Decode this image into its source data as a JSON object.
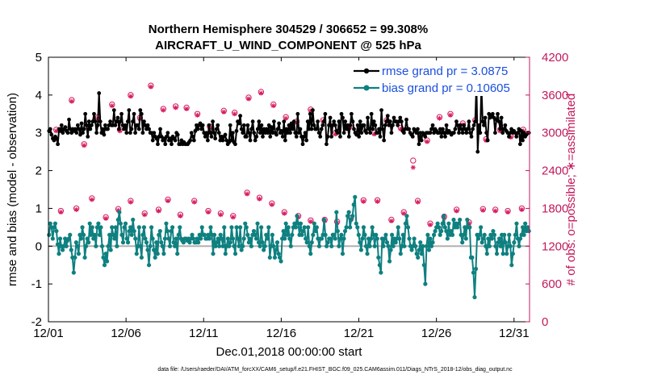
{
  "chart_data": {
    "type": "line",
    "title": "Northern Hemisphere 304529 / 306652 = 99.308%",
    "subtitle": "AIRCRAFT_U_WIND_COMPONENT @ 525 hPa",
    "xlabel": "Dec.01,2018 00:00:00 start",
    "ylabel": "rmse and bias (model - observation)",
    "y2label": "# of obs: o=possible; ∗=assimilated",
    "xlim": [
      0,
      31
    ],
    "ylim": [
      -2,
      5
    ],
    "y2lim": [
      0,
      4200
    ],
    "x_tick_labels": [
      "12/01",
      "12/06",
      "12/11",
      "12/16",
      "12/21",
      "12/26",
      "12/31"
    ],
    "x_tick_values": [
      0,
      5,
      10,
      15,
      20,
      25,
      30
    ],
    "y_ticks": [
      "-2",
      "-1",
      "0",
      "1",
      "2",
      "3",
      "4",
      "5"
    ],
    "y2_ticks": [
      "0",
      "600",
      "1200",
      "1800",
      "2400",
      "3000",
      "3600",
      "4200"
    ],
    "footnote": "data file: /Users/raeder/DAI/ATM_forcXX/CAM6_setup/f.e21.FHIST_BGC.f09_025.CAM6assim.011/Diags_NTrS_2018-12/obs_diag_output.nc",
    "series": [
      {
        "name": "rmse grand pr = 3.0875",
        "color": "#000000",
        "marker": "asterisk",
        "values": [
          3.05,
          3.1,
          2.95,
          2.85,
          2.8,
          2.9,
          2.85,
          2.7,
          3.1,
          3.05,
          3.2,
          3.0,
          3.1,
          3.15,
          3.05,
          3.0,
          3.35,
          3.1,
          3.0,
          3.1,
          3.05,
          3.1,
          3.0,
          3.2,
          3.1,
          2.95,
          3.25,
          3.0,
          3.1,
          3.5,
          3.2,
          2.9,
          3.3,
          3.1,
          3.2,
          3.3,
          3.5,
          3.3,
          3.0,
          3.2,
          4.05,
          3.3,
          3.0,
          3.1,
          2.95,
          3.2,
          3.1,
          3.1,
          3.2,
          3.3,
          3.2,
          3.2,
          3.6,
          3.2,
          3.3,
          3.4,
          3.1,
          3.3,
          3.5,
          3.2,
          3.1,
          3.2,
          3.0,
          3.3,
          3.6,
          3.0,
          3.1,
          3.3,
          3.5,
          3.0,
          3.2,
          3.2,
          3.1,
          3.6,
          3.5,
          3.0,
          3.3,
          3.2,
          3.1,
          3.2,
          3.1,
          3.0,
          3.0,
          2.8,
          3.0,
          2.9,
          2.85,
          2.7,
          2.9,
          3.1,
          2.9,
          2.8,
          2.85,
          2.7,
          2.9,
          3.0,
          2.8,
          2.85,
          2.7,
          2.9,
          2.85,
          2.8,
          3.0,
          2.95,
          2.7,
          2.7,
          2.8,
          2.7,
          2.75,
          2.7,
          2.7,
          2.7,
          2.75,
          2.8,
          3.0,
          2.9,
          2.8,
          3.05,
          3.2,
          3.1,
          3.2,
          3.25,
          3.1,
          3.2,
          3.0,
          2.9,
          3.0,
          2.8,
          3.2,
          3.0,
          2.9,
          3.3,
          3.0,
          2.85,
          3.1,
          3.2,
          3.0,
          2.8,
          2.9,
          2.8,
          2.9,
          2.95,
          2.8,
          2.7,
          2.75,
          3.2,
          2.8,
          3.0,
          2.75,
          2.7,
          3.05,
          3.3,
          3.25,
          3.45,
          3.1,
          3.0,
          3.2,
          2.9,
          2.9,
          3.2,
          3.0,
          2.8,
          3.1,
          3.3,
          3.0,
          2.8,
          2.9,
          3.1,
          3.3,
          3.0,
          3.2,
          2.9,
          3.1,
          3.0,
          3.1,
          3.0,
          3.2,
          2.9,
          3.15,
          3.0,
          3.3,
          3.0,
          2.95,
          3.1,
          3.25,
          3.0,
          3.05,
          2.9,
          3.3,
          2.8,
          3.1,
          3.0,
          3.2,
          3.0,
          3.25,
          3.1,
          3.3,
          3.0,
          2.9,
          3.5,
          3.0,
          3.1,
          2.9,
          2.7,
          2.9,
          3.0,
          2.8,
          3.3,
          3.1,
          3.5,
          3.1,
          3.6,
          3.2,
          3.1,
          3.1,
          3.3,
          3.0,
          2.9,
          3.1,
          3.2,
          3.3,
          3.5,
          2.7,
          2.9,
          3.2,
          3.4,
          2.9,
          3.2,
          3.3,
          3.2,
          3.05,
          3.0,
          3.3,
          2.9,
          3.5,
          3.4,
          3.0,
          3.3,
          3.1,
          3.2,
          2.9,
          3.2,
          3.5,
          3.3,
          3.1,
          3.0,
          2.95,
          3.2,
          2.9,
          3.3,
          3.0,
          3.2,
          3.2,
          3.05,
          3.0,
          3.4,
          3.1,
          3.0,
          3.5,
          3.1,
          3.3,
          3.2,
          3.0,
          3.0,
          3.1,
          2.9,
          3.6,
          3.1,
          2.8,
          3.2,
          3.3,
          3.45,
          3.2,
          3.3,
          3.0,
          3.2,
          3.4,
          3.3,
          3.3,
          3.2,
          3.3,
          3.4,
          3.3,
          3.05,
          3.0,
          3.1,
          3.35,
          3.1,
          3.1,
          3.0,
          2.95,
          2.9,
          3.1,
          3.05,
          3.0,
          3.1,
          2.7,
          3.0,
          2.8,
          3.0,
          2.95,
          2.9,
          3.0,
          3.0,
          3.0,
          3.0,
          3.1,
          3.2,
          3.0,
          3.1,
          3.05,
          3.0,
          3.0,
          3.1,
          2.9,
          3.1,
          3.0,
          2.9,
          3.2,
          3.0,
          3.05,
          3.0,
          2.95,
          3.0,
          3.0,
          3.1,
          3.3,
          3.2,
          3.0,
          3.2,
          3.1,
          3.0,
          3.2,
          3.1,
          3.0,
          3.1,
          3.3,
          3.0,
          2.9,
          3.1,
          3.2,
          3.3,
          4.3,
          2.5,
          3.2,
          3.0,
          4.25,
          3.3,
          3.2,
          3.4,
          3.0,
          2.8,
          3.5,
          3.4,
          3.45,
          3.5,
          3.4,
          3.0,
          3.35,
          3.5,
          3.3,
          3.1,
          3.4,
          3.0,
          3.1,
          3.2,
          3.05,
          3.0,
          2.9,
          3.0,
          3.1,
          3.0,
          3.05,
          3.0,
          2.9,
          3.0,
          3.1,
          2.7,
          3.05,
          2.8,
          3.0,
          2.9,
          2.95,
          3.0,
          3.0
        ]
      },
      {
        "name": "bias grand pr = 0.10605",
        "color": "#0f8080",
        "marker": "dot",
        "values": [
          0.3,
          0.6,
          0.5,
          0.2,
          0.5,
          0.6,
          0.4,
          0.05,
          -0.2,
          0.2,
          0.0,
          -0.1,
          0.0,
          0.2,
          0.0,
          0.15,
          0.2,
          0.3,
          -0.1,
          -0.3,
          -0.7,
          -0.3,
          0.1,
          0.0,
          -0.2,
          0.3,
          0.2,
          0.5,
          0.3,
          -0.3,
          0.0,
          0.2,
          0.1,
          0.6,
          0.3,
          0.5,
          0.2,
          0.3,
          0.0,
          0.5,
          0.6,
          0.3,
          0.5,
          0.0,
          -0.3,
          -0.5,
          -0.2,
          -0.4,
          0.0,
          0.3,
          -0.1,
          0.5,
          0.3,
          0.2,
          0.5,
          0.0,
          0.7,
          0.9,
          0.6,
          0.3,
          0.1,
          0.5,
          0.6,
          0.2,
          0.1,
          0.4,
          0.5,
          0.3,
          0.7,
          0.4,
          0.2,
          -0.2,
          0.0,
          0.5,
          0.0,
          -0.3,
          0.3,
          0.5,
          0.2,
          0.1,
          -0.1,
          -0.5,
          0.0,
          0.5,
          0.2,
          -0.1,
          -0.3,
          0.1,
          -0.2,
          0.3,
          0.4,
          0.1,
          0.0,
          -0.2,
          0.2,
          0.6,
          0.4,
          0.2,
          0.0,
          0.4,
          0.5,
          0.1,
          0.0,
          0.2,
          -0.2,
          0.3,
          0.5,
          0.2,
          0.15,
          0.1,
          0.2,
          0.2,
          0.15,
          0.2,
          0.1,
          0.2,
          0.3,
          0.2,
          0.1,
          0.1,
          0.2,
          0.1,
          0.3,
          0.2,
          0.5,
          0.3,
          0.3,
          0.2,
          0.2,
          0.3,
          0.2,
          0.5,
          0.3,
          -0.2,
          0.3,
          0.0,
          0.1,
          0.2,
          0.0,
          0.3,
          0.2,
          0.0,
          0.5,
          -0.2,
          0.0,
          0.2,
          0.0,
          0.1,
          0.5,
          0.2,
          0.0,
          -0.2,
          0.5,
          0.2,
          0.0,
          0.5,
          -0.1,
          0.0,
          0.2,
          0.6,
          0.5,
          0.3,
          0.1,
          0.2,
          0.0,
          0.3,
          0.4,
          0.3,
          0.2,
          0.6,
          0.1,
          0.0,
          0.5,
          0.1,
          -0.1,
          0.0,
          0.3,
          0.2,
          0.5,
          -0.3,
          0.0,
          0.3,
          0.0,
          -0.3,
          -0.1,
          0.1,
          -0.2,
          -0.3,
          -0.4,
          0.2,
          0.4,
          0.2,
          0.6,
          0.3,
          0.5,
          0.2,
          0.0,
          0.3,
          0.5,
          0.6,
          0.5,
          0.8,
          0.6,
          0.3,
          0.6,
          0.3,
          0.4,
          0.5,
          0.2,
          0.1,
          0.5,
          0.0,
          -0.2,
          0.1,
          0.3,
          0.6,
          0.4,
          0.5,
          0.2,
          0.0,
          0.2,
          0.2,
          0.3,
          0.7,
          0.3,
          0.0,
          0.1,
          0.2,
          0.2,
          0.0,
          0.3,
          0.3,
          0.2,
          0.9,
          0.4,
          0.0,
          0.2,
          0.3,
          -0.2,
          0.2,
          0.4,
          0.5,
          0.8,
          0.9,
          0.5,
          0.7,
          0.8,
          1.1,
          1.3,
          0.6,
          0.5,
          0.3,
          0.1,
          -0.1,
          0.2,
          0.5,
          0.3,
          0.0,
          -0.2,
          0.2,
          0.0,
          0.2,
          0.5,
          0.3,
          0.0,
          0.3,
          0.2,
          -0.3,
          -0.5,
          -0.7,
          0.2,
          0.0,
          0.2,
          0.3,
          0.1,
          0.0,
          -0.4,
          -0.1,
          0.3,
          0.0,
          0.2,
          0.1,
          0.2,
          0.5,
          0.2,
          -0.2,
          0.0,
          0.3,
          0.0,
          0.6,
          0.8,
          0.5,
          0.2,
          0.0,
          -0.1,
          0.0,
          0.2,
          0.0,
          -0.2,
          -0.3,
          -0.1,
          0.1,
          -0.2,
          0.0,
          -0.5,
          -1.0,
          0.0,
          0.3,
          -0.1,
          0.2,
          0.0,
          0.1,
          0.3,
          0.4,
          0.5,
          0.6,
          0.5,
          0.3,
          0.4,
          0.6,
          0.8,
          0.5,
          0.4,
          0.2,
          0.6,
          0.3,
          0.4,
          0.3,
          0.7,
          0.5,
          0.6,
          0.5,
          0.6,
          0.7,
          0.3,
          0.1,
          0.3,
          0.5,
          0.2,
          0.7,
          0.5,
          0.5,
          -0.3,
          -0.3,
          -0.7,
          -1.35,
          -0.6,
          0.3,
          0.2,
          0.3,
          0.5,
          0.1,
          0.2,
          0.3,
          0.0,
          -0.2,
          0.2,
          0.0,
          0.3,
          0.2,
          0.4,
          0.3,
          0.0,
          -0.2,
          0.1,
          0.2,
          0.0,
          0.3,
          -0.2,
          0.3,
          0.1,
          -0.2,
          0.0,
          0.3,
          0.0,
          -0.5,
          -0.2,
          0.1,
          0.3,
          0.6,
          0.2,
          0.0,
          0.2,
          0.3,
          0.5,
          0.3,
          0.6,
          0.4,
          0.5,
          0.4
        ]
      },
      {
        "name": "possible",
        "axis": "right",
        "marker": "circle",
        "color": "#d81b60",
        "x": [
          0.5,
          1.5,
          2.3,
          3.2,
          4.1,
          4.6,
          5.3,
          5.9,
          6.6,
          7.4,
          8.2,
          8.9,
          9.6,
          10.4,
          11.3,
          12.0,
          12.9,
          13.7,
          14.5,
          15.3,
          16.0,
          16.9,
          17.7,
          18.5,
          19.4,
          20.1,
          21.0,
          21.8,
          22.7,
          23.5,
          24.4,
          25.2,
          25.9,
          26.7,
          27.5,
          28.2,
          29.1,
          29.8,
          30.6,
          0.8,
          1.8,
          2.8,
          3.7,
          4.5,
          5.3,
          6.2,
          7.1,
          7.7,
          8.5,
          9.4,
          10.3,
          11.1,
          11.9,
          12.8,
          13.6,
          14.4,
          15.2,
          16.1,
          16.9,
          17.8,
          18.6,
          19.5,
          20.3,
          21.2,
          22.1,
          22.9,
          23.8,
          24.6,
          25.5,
          26.3,
          27.1,
          28.0,
          28.8,
          29.6,
          30.5
        ],
        "values": [
          3050,
          3520,
          2820,
          3250,
          3450,
          3050,
          3600,
          3240,
          3750,
          3380,
          3420,
          3400,
          3300,
          3100,
          3350,
          3320,
          3560,
          3650,
          3450,
          3250,
          3180,
          3370,
          3200,
          3000,
          3100,
          3070,
          3000,
          3200,
          3080,
          2560,
          2880,
          3250,
          3300,
          3150,
          3200,
          2900,
          3050,
          2950,
          3050,
          1760,
          1800,
          1960,
          1660,
          1790,
          1920,
          1720,
          1780,
          1940,
          1700,
          1920,
          1760,
          1720,
          1680,
          2050,
          1970,
          1880,
          1740,
          1680,
          1610,
          1620,
          1590,
          1650,
          1930,
          1930,
          1620,
          1740,
          1920,
          1560,
          1670,
          1780,
          1580,
          1790,
          1780,
          1760,
          1800
        ]
      },
      {
        "name": "assimilated",
        "axis": "right",
        "marker": "asterisk",
        "color": "#d81b60",
        "x": [
          0.5,
          1.5,
          2.3,
          3.2,
          4.1,
          4.6,
          5.3,
          5.9,
          6.6,
          7.4,
          8.2,
          8.9,
          9.6,
          10.4,
          11.3,
          12.0,
          12.9,
          13.7,
          14.5,
          15.3,
          16.0,
          16.9,
          17.7,
          18.5,
          19.4,
          20.1,
          21.0,
          21.8,
          22.7,
          23.5,
          24.4,
          25.2,
          25.9,
          26.7,
          27.5,
          28.2,
          29.1,
          29.8,
          30.6,
          0.8,
          1.8,
          2.8,
          3.7,
          4.5,
          5.3,
          6.2,
          7.1,
          7.7,
          8.5,
          9.4,
          10.3,
          11.1,
          11.9,
          12.8,
          13.6,
          14.4,
          15.2,
          16.1,
          16.9,
          17.8,
          18.6,
          19.5,
          20.3,
          21.2,
          22.1,
          22.9,
          23.8,
          24.6,
          25.5,
          26.3,
          27.1,
          28.0,
          28.8,
          29.6,
          30.5
        ],
        "values": [
          3030,
          3500,
          2800,
          3230,
          3430,
          3030,
          3580,
          3220,
          3730,
          3360,
          3400,
          3380,
          3280,
          3080,
          3330,
          3300,
          3540,
          3630,
          3430,
          3230,
          3160,
          3350,
          3180,
          2980,
          3080,
          3050,
          2980,
          3180,
          3060,
          2450,
          2860,
          3230,
          3280,
          3130,
          3180,
          2880,
          3030,
          2930,
          3030,
          1740,
          1780,
          1940,
          1640,
          1770,
          1900,
          1700,
          1760,
          1920,
          1680,
          1900,
          1740,
          1700,
          1660,
          2030,
          1950,
          1860,
          1720,
          1660,
          1590,
          1600,
          1570,
          1630,
          1910,
          1910,
          1600,
          1720,
          1900,
          1540,
          1650,
          1760,
          1560,
          1770,
          1760,
          1740,
          1780
        ]
      }
    ],
    "legend": "top-right"
  }
}
